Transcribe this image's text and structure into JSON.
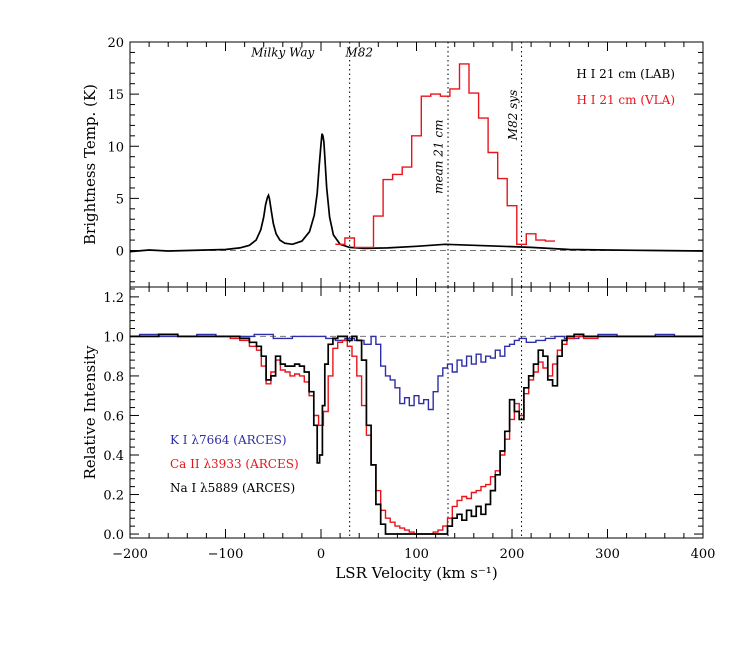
{
  "chart_data": [
    {
      "type": "line",
      "panel": "top",
      "title": "",
      "xlabel": "",
      "ylabel": "Brightness Temp. (K)",
      "xlim": [
        -200,
        400
      ],
      "ylim": [
        -3.5,
        20
      ],
      "yticks": [
        0,
        5,
        10,
        15,
        20
      ],
      "xticks": [
        -200,
        -100,
        0,
        100,
        200,
        300,
        400
      ],
      "x_tick_labels_shown": false,
      "reference_lines": [
        {
          "value": 0,
          "orientation": "horizontal",
          "style": "dashed",
          "color": "#777777"
        },
        {
          "value": 30,
          "orientation": "vertical",
          "style": "dotted",
          "color": "#000000"
        },
        {
          "value": 133,
          "orientation": "vertical",
          "style": "dotted",
          "color": "#000000"
        },
        {
          "value": 210,
          "orientation": "vertical",
          "style": "dotted",
          "color": "#000000"
        }
      ],
      "annotations": [
        {
          "text": "Milky Way",
          "x": -40,
          "y": 18.6,
          "rotation": 0
        },
        {
          "text": "M82",
          "x": 40,
          "y": 18.6,
          "rotation": 0
        },
        {
          "text": "mean 21 cm",
          "x": 127,
          "y": 9,
          "rotation": -90
        },
        {
          "text": "M82 sys",
          "x": 205,
          "y": 13,
          "rotation": -90
        }
      ],
      "legend": {
        "placement": "top-right",
        "entries": [
          {
            "label": "H I 21 cm (LAB)",
            "color": "#000000"
          },
          {
            "label": "H I 21 cm (VLA)",
            "color": "#e8141c"
          }
        ]
      },
      "series": [
        {
          "name": "H I 21 cm (LAB)",
          "color": "#000000",
          "style": "line",
          "x": [
            -200,
            -180,
            -160,
            -140,
            -120,
            -100,
            -85,
            -75,
            -68,
            -63,
            -60,
            -58,
            -56,
            -55,
            -54,
            -52,
            -50,
            -47,
            -43,
            -38,
            -30,
            -20,
            -12,
            -7,
            -4,
            -2,
            0,
            1,
            2,
            3,
            4,
            6,
            9,
            13,
            20,
            30,
            45,
            70,
            100,
            130,
            160,
            190,
            220,
            260,
            300,
            350,
            400
          ],
          "values": [
            -0.1,
            0.05,
            -0.05,
            0.0,
            0.05,
            0.1,
            0.25,
            0.5,
            1.0,
            2.0,
            3.2,
            4.4,
            5.1,
            5.3,
            5.0,
            3.8,
            2.6,
            1.6,
            1.0,
            0.7,
            0.6,
            0.9,
            1.8,
            3.4,
            5.5,
            8.0,
            10.2,
            11.2,
            11.0,
            10.4,
            9.0,
            6.0,
            3.2,
            1.5,
            0.6,
            0.3,
            0.2,
            0.25,
            0.4,
            0.6,
            0.5,
            0.4,
            0.3,
            0.1,
            0.05,
            0.0,
            -0.05
          ]
        },
        {
          "name": "H I 21 cm (VLA)",
          "color": "#e8141c",
          "style": "steps",
          "x": [
            20,
            30,
            40,
            50,
            60,
            70,
            80,
            90,
            100,
            110,
            120,
            130,
            140,
            150,
            160,
            170,
            180,
            190,
            200,
            210,
            220,
            230,
            240
          ],
          "values": [
            0.6,
            1.2,
            0.3,
            0.3,
            3.3,
            6.8,
            7.3,
            8.0,
            11.0,
            14.8,
            15.0,
            14.8,
            15.5,
            17.9,
            15.1,
            12.7,
            9.4,
            6.9,
            4.3,
            0.6,
            1.6,
            1.0,
            0.9
          ]
        }
      ]
    },
    {
      "type": "line",
      "panel": "bottom",
      "title": "",
      "xlabel": "LSR Velocity (km s⁻¹)",
      "ylabel": "Relative Intensity",
      "xlim": [
        -200,
        400
      ],
      "ylim": [
        -0.02,
        1.25
      ],
      "yticks": [
        0.0,
        0.2,
        0.4,
        0.6,
        0.8,
        1.0,
        1.2
      ],
      "ytick_labels": [
        "0.0",
        "0.2",
        "0.4",
        "0.6",
        "0.8",
        "1.0",
        "1.2"
      ],
      "xticks": [
        -200,
        -100,
        0,
        100,
        200,
        300,
        400
      ],
      "xtick_labels": [
        "−200",
        "−100",
        "0",
        "100",
        "200",
        "300",
        "400"
      ],
      "reference_lines": [
        {
          "value": 1.0,
          "orientation": "horizontal",
          "style": "dashed",
          "color": "#777777"
        },
        {
          "value": 30,
          "orientation": "vertical",
          "style": "dotted",
          "color": "#000000"
        },
        {
          "value": 133,
          "orientation": "vertical",
          "style": "dotted",
          "color": "#000000"
        },
        {
          "value": 210,
          "orientation": "vertical",
          "style": "dotted",
          "color": "#000000"
        }
      ],
      "legend": {
        "placement": "lower-left",
        "entries": [
          {
            "label": "K I λ7664 (ARCES)",
            "color": "#2e2ea8"
          },
          {
            "label": "Ca II λ3933 (ARCES)",
            "color": "#e8141c"
          },
          {
            "label": "Na I λ5889 (ARCES)",
            "color": "#000000"
          }
        ]
      },
      "series": [
        {
          "name": "K I λ7664 (ARCES)",
          "color": "#2e2ea8",
          "style": "steps",
          "x": [
            -200,
            -180,
            -160,
            -140,
            -120,
            -100,
            -80,
            -60,
            -40,
            -20,
            0,
            10,
            20,
            30,
            40,
            50,
            55,
            60,
            65,
            70,
            75,
            80,
            85,
            90,
            95,
            100,
            105,
            110,
            115,
            120,
            125,
            130,
            135,
            140,
            145,
            150,
            155,
            160,
            165,
            170,
            175,
            180,
            185,
            190,
            195,
            200,
            205,
            210,
            220,
            230,
            240,
            250,
            260,
            280,
            300,
            320,
            340,
            360,
            380,
            400
          ],
          "values": [
            1.0,
            1.01,
            1.0,
            1.0,
            1.01,
            1.0,
            1.0,
            1.01,
            0.99,
            1.0,
            1.0,
            0.99,
            0.98,
            0.99,
            0.98,
            0.96,
            1.0,
            0.96,
            0.85,
            0.8,
            0.78,
            0.74,
            0.66,
            0.69,
            0.65,
            0.7,
            0.66,
            0.68,
            0.63,
            0.72,
            0.8,
            0.84,
            0.86,
            0.82,
            0.88,
            0.85,
            0.9,
            0.86,
            0.91,
            0.87,
            0.9,
            0.89,
            0.93,
            0.9,
            0.95,
            0.96,
            0.98,
            0.99,
            0.97,
            0.98,
            0.99,
            1.0,
            0.99,
            1.0,
            1.01,
            1.0,
            1.0,
            1.01,
            1.0,
            1.0
          ]
        },
        {
          "name": "Ca II λ3933 (ARCES)",
          "color": "#e8141c",
          "style": "steps",
          "x": [
            -200,
            -180,
            -160,
            -140,
            -120,
            -100,
            -90,
            -80,
            -70,
            -65,
            -60,
            -55,
            -50,
            -45,
            -40,
            -35,
            -30,
            -25,
            -20,
            -15,
            -10,
            -5,
            0,
            5,
            10,
            15,
            20,
            25,
            30,
            35,
            40,
            45,
            50,
            55,
            60,
            65,
            70,
            75,
            80,
            85,
            90,
            95,
            100,
            105,
            110,
            115,
            120,
            125,
            130,
            135,
            140,
            145,
            150,
            155,
            160,
            165,
            170,
            175,
            180,
            185,
            190,
            195,
            200,
            205,
            210,
            215,
            220,
            225,
            230,
            235,
            240,
            245,
            250,
            255,
            260,
            270,
            280,
            300,
            320,
            340,
            360,
            380,
            400
          ],
          "values": [
            1.0,
            1.0,
            1.01,
            1.0,
            1.0,
            1.0,
            0.99,
            0.98,
            0.95,
            0.93,
            0.85,
            0.76,
            0.82,
            0.88,
            0.83,
            0.82,
            0.8,
            0.81,
            0.8,
            0.77,
            0.7,
            0.6,
            0.55,
            0.62,
            0.8,
            0.94,
            0.97,
            0.98,
            0.95,
            0.9,
            0.8,
            0.65,
            0.5,
            0.35,
            0.22,
            0.12,
            0.08,
            0.06,
            0.04,
            0.03,
            0.02,
            0.01,
            0.0,
            0.0,
            0.0,
            0.0,
            0.01,
            0.02,
            0.04,
            0.08,
            0.14,
            0.17,
            0.19,
            0.18,
            0.21,
            0.22,
            0.24,
            0.25,
            0.29,
            0.32,
            0.4,
            0.48,
            0.58,
            0.66,
            0.6,
            0.71,
            0.78,
            0.82,
            0.87,
            0.84,
            0.8,
            0.86,
            0.93,
            0.96,
            0.99,
            1.0,
            0.99,
            1.0,
            1.0,
            1.0,
            1.0,
            1.0,
            1.0
          ]
        },
        {
          "name": "Na I λ5889 (ARCES)",
          "color": "#000000",
          "style": "steps",
          "x": [
            -200,
            -180,
            -160,
            -140,
            -120,
            -100,
            -90,
            -80,
            -70,
            -65,
            -60,
            -55,
            -50,
            -45,
            -40,
            -35,
            -30,
            -25,
            -20,
            -15,
            -10,
            -5,
            -3,
            0,
            3,
            5,
            10,
            15,
            20,
            25,
            30,
            35,
            40,
            45,
            50,
            55,
            60,
            65,
            70,
            75,
            80,
            85,
            90,
            95,
            100,
            105,
            110,
            115,
            120,
            125,
            130,
            135,
            140,
            145,
            150,
            155,
            160,
            165,
            170,
            175,
            180,
            185,
            190,
            195,
            200,
            205,
            210,
            215,
            220,
            225,
            230,
            235,
            240,
            245,
            250,
            255,
            260,
            270,
            280,
            300,
            320,
            340,
            360,
            380,
            400
          ],
          "values": [
            1.0,
            1.0,
            1.01,
            1.0,
            1.0,
            1.0,
            1.0,
            0.99,
            0.97,
            0.95,
            0.9,
            0.78,
            0.8,
            0.9,
            0.86,
            0.85,
            0.85,
            0.86,
            0.85,
            0.82,
            0.72,
            0.55,
            0.36,
            0.4,
            0.65,
            0.86,
            0.96,
            0.99,
            1.0,
            1.0,
            0.98,
            1.0,
            0.98,
            0.88,
            0.55,
            0.35,
            0.15,
            0.05,
            0.0,
            0.0,
            0.0,
            0.0,
            0.0,
            0.0,
            0.0,
            0.0,
            0.0,
            0.0,
            0.0,
            0.0,
            0.0,
            0.04,
            0.08,
            0.1,
            0.07,
            0.12,
            0.09,
            0.14,
            0.1,
            0.15,
            0.22,
            0.3,
            0.42,
            0.52,
            0.68,
            0.62,
            0.58,
            0.74,
            0.8,
            0.86,
            0.93,
            0.9,
            0.78,
            0.75,
            0.9,
            0.98,
            1.0,
            1.01,
            1.0,
            1.0,
            1.0,
            1.0,
            1.0,
            1.0,
            1.0
          ]
        }
      ]
    }
  ]
}
